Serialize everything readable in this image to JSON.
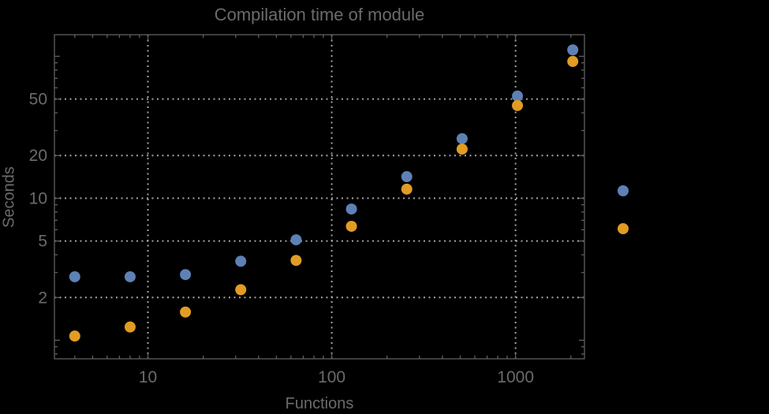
{
  "window": {
    "background": "#000000"
  },
  "chart_data": {
    "type": "scatter",
    "title": "Compilation time of module",
    "xlabel": "Functions",
    "ylabel": "Seconds",
    "x_scale": "log",
    "y_scale": "log",
    "xlim": [
      3.1,
      2370
    ],
    "ylim": [
      0.74,
      142
    ],
    "grid_on": true,
    "x": [
      4,
      8,
      16,
      32,
      64,
      128,
      256,
      512,
      1024,
      2048
    ],
    "series": [
      {
        "name": "series-1",
        "color": "#5e81b5",
        "values": [
          2.8,
          2.8,
          2.9,
          3.6,
          5.1,
          8.4,
          14.2,
          26.3,
          52.5,
          111
        ]
      },
      {
        "name": "series-2",
        "color": "#e19c24",
        "values": [
          1.07,
          1.24,
          1.58,
          2.27,
          3.65,
          6.35,
          11.6,
          22.2,
          45,
          92
        ]
      }
    ],
    "x_ticks": {
      "major": [
        10,
        100,
        1000
      ],
      "labels": [
        "10",
        "100",
        "1000"
      ],
      "minor": [
        4,
        5,
        6,
        7,
        8,
        9,
        20,
        30,
        40,
        50,
        60,
        70,
        80,
        90,
        200,
        300,
        400,
        500,
        600,
        700,
        800,
        900,
        2000
      ]
    },
    "y_ticks": {
      "major": [
        1,
        2,
        5,
        10,
        20,
        50,
        100
      ],
      "labels": [
        "",
        "2",
        "5",
        "10",
        "20",
        "50",
        ""
      ],
      "minor": [
        0.8,
        0.9,
        3,
        4,
        6,
        7,
        8,
        9,
        30,
        40,
        60,
        70,
        80,
        90
      ]
    },
    "gridlines": {
      "x": [
        10,
        100,
        1000
      ],
      "y": [
        2,
        5,
        10,
        20,
        50
      ],
      "style": "dotted"
    },
    "legend": {
      "position": "right-outside",
      "labels_visible": false,
      "markers": [
        {
          "series": "series-1",
          "color": "#5e81b5"
        },
        {
          "series": "series-2",
          "color": "#e19c24"
        }
      ]
    },
    "colors": {
      "frame": "#5f5f5f",
      "grid": "#a4a4a4",
      "text": "#6b6b6b",
      "background": "#000000"
    }
  }
}
